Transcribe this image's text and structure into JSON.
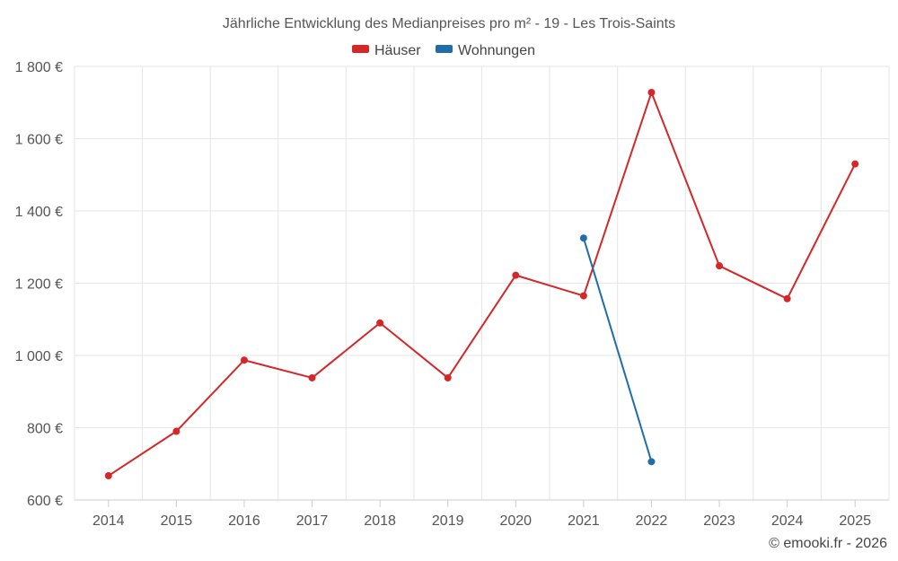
{
  "chart_data": {
    "type": "line",
    "title": "Jährliche Entwicklung des Medianpreises pro m² - 19 - Les Trois-Saints",
    "categories": [
      "2014",
      "2015",
      "2016",
      "2017",
      "2018",
      "2019",
      "2020",
      "2021",
      "2022",
      "2023",
      "2024",
      "2025"
    ],
    "y_ticks": [
      600,
      800,
      1000,
      1200,
      1400,
      1600,
      1800
    ],
    "y_tick_labels": [
      "600 €",
      "800 €",
      "1 000 €",
      "1 200 €",
      "1 400 €",
      "1 600 €",
      "1 800 €"
    ],
    "ylim": [
      600,
      1800
    ],
    "grid": true,
    "legend_position": "top-center",
    "series": [
      {
        "name": "Häuser",
        "color": "#d62728",
        "values": [
          667,
          790,
          987,
          938,
          1090,
          938,
          1222,
          1165,
          1728,
          1248,
          1157,
          1530
        ]
      },
      {
        "name": "Wohnungen",
        "color": "#1f6ea8",
        "values": [
          null,
          null,
          null,
          null,
          null,
          null,
          null,
          1325,
          706,
          null,
          null,
          null
        ]
      }
    ]
  },
  "credit": "© emooki.fr - 2026"
}
